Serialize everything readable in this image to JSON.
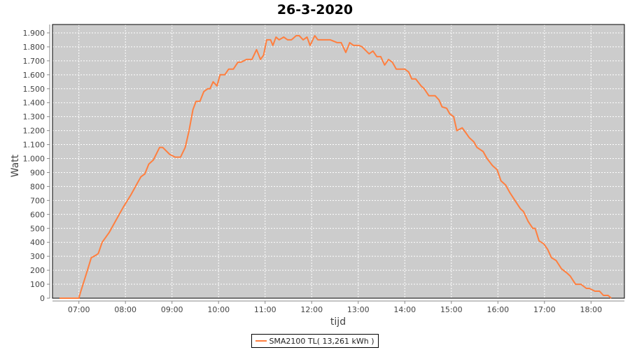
{
  "chart_data": {
    "type": "line",
    "title": "26-3-2020",
    "xlabel": "tijd",
    "ylabel": "Watt",
    "xlim": [
      "06:26",
      "18:43"
    ],
    "ylim": [
      0,
      1960
    ],
    "x_ticks": [
      "07:00",
      "08:00",
      "09:00",
      "10:00",
      "11:00",
      "12:00",
      "13:00",
      "14:00",
      "15:00",
      "16:00",
      "17:00",
      "18:00"
    ],
    "y_ticks": [
      0,
      100,
      200,
      300,
      400,
      500,
      600,
      700,
      800,
      900,
      1000,
      1100,
      1200,
      1300,
      1400,
      1500,
      1600,
      1700,
      1800,
      1900
    ],
    "y_tick_labels": [
      "0",
      "100",
      "200",
      "300",
      "400",
      "500",
      "600",
      "700",
      "800",
      "900",
      "1.000",
      "1.100",
      "1.200",
      "1.300",
      "1.400",
      "1.500",
      "1.600",
      "1.700",
      "1.800",
      "1.900"
    ],
    "grid": true,
    "legend_position": "bottom",
    "plot_background": "#cccccc",
    "series": [
      {
        "name": "SMA2100 TL( 13,261 kWh )",
        "color": "#ff7f3f",
        "x": [
          "06:35",
          "07:00",
          "07:02",
          "07:11",
          "07:16",
          "07:21",
          "07:25",
          "07:30",
          "07:39",
          "07:48",
          "07:57",
          "08:07",
          "08:16",
          "08:20",
          "08:25",
          "08:30",
          "08:36",
          "08:44",
          "08:48",
          "08:57",
          "09:04",
          "09:11",
          "09:17",
          "09:22",
          "09:27",
          "09:31",
          "09:36",
          "09:41",
          "09:46",
          "09:49",
          "09:53",
          "09:58",
          "10:02",
          "10:08",
          "10:13",
          "10:19",
          "10:25",
          "10:29",
          "10:36",
          "10:43",
          "10:49",
          "10:54",
          "10:58",
          "11:02",
          "11:07",
          "11:10",
          "11:14",
          "11:18",
          "11:24",
          "11:29",
          "11:34",
          "11:40",
          "11:44",
          "11:49",
          "11:54",
          "11:58",
          "12:04",
          "12:08",
          "12:24",
          "12:33",
          "12:38",
          "12:44",
          "12:49",
          "12:54",
          "13:01",
          "13:05",
          "13:14",
          "13:19",
          "13:24",
          "13:29",
          "13:34",
          "13:39",
          "13:44",
          "13:49",
          "14:00",
          "14:05",
          "14:09",
          "14:14",
          "14:21",
          "14:25",
          "14:31",
          "14:39",
          "14:44",
          "14:48",
          "14:54",
          "14:58",
          "15:03",
          "15:07",
          "15:14",
          "15:18",
          "15:23",
          "15:29",
          "15:33",
          "15:41",
          "15:46",
          "15:53",
          "15:59",
          "16:04",
          "16:10",
          "16:15",
          "16:22",
          "16:29",
          "16:33",
          "16:39",
          "16:45",
          "16:48",
          "16:53",
          "16:59",
          "17:04",
          "17:09",
          "17:15",
          "17:22",
          "17:29",
          "17:33",
          "17:40",
          "17:47",
          "17:54",
          "17:58",
          "18:05",
          "18:11",
          "18:16",
          "18:22",
          "18:26"
        ],
        "values": [
          0,
          0,
          40,
          200,
          290,
          305,
          320,
          400,
          470,
          560,
          650,
          740,
          830,
          870,
          890,
          960,
          990,
          1080,
          1080,
          1030,
          1010,
          1010,
          1080,
          1200,
          1350,
          1410,
          1410,
          1480,
          1500,
          1500,
          1550,
          1520,
          1600,
          1600,
          1640,
          1640,
          1690,
          1690,
          1710,
          1710,
          1780,
          1710,
          1740,
          1850,
          1850,
          1810,
          1870,
          1850,
          1870,
          1850,
          1850,
          1880,
          1880,
          1850,
          1870,
          1810,
          1880,
          1850,
          1850,
          1830,
          1830,
          1760,
          1830,
          1810,
          1810,
          1800,
          1750,
          1770,
          1730,
          1730,
          1670,
          1710,
          1690,
          1640,
          1640,
          1620,
          1570,
          1570,
          1520,
          1500,
          1450,
          1450,
          1420,
          1370,
          1360,
          1320,
          1300,
          1200,
          1220,
          1190,
          1150,
          1120,
          1080,
          1050,
          1000,
          950,
          920,
          840,
          810,
          760,
          700,
          640,
          620,
          550,
          500,
          500,
          410,
          390,
          350,
          290,
          270,
          210,
          180,
          160,
          100,
          100,
          70,
          70,
          50,
          50,
          20,
          20,
          0
        ]
      }
    ]
  }
}
